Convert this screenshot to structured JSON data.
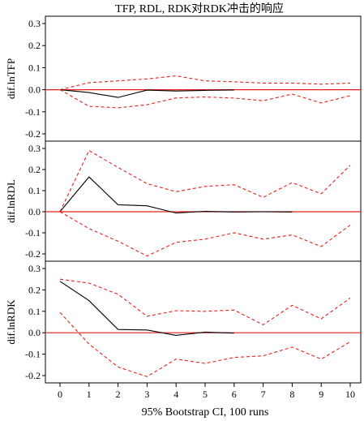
{
  "chart_data": {
    "type": "line",
    "title": "TFP, RDL, RDK对RDK冲击的响应",
    "xlabel": "95% Bootstrap CI, 100 runs",
    "x": [
      0,
      1,
      2,
      3,
      4,
      5,
      6,
      7,
      8,
      9,
      10
    ],
    "xlim": [
      0,
      10
    ],
    "grid": false,
    "panels": [
      {
        "ylabel": "dif.lnTFP",
        "ylim": [
          -0.2,
          0.3
        ],
        "yticks": [
          "0.3",
          "0.2",
          "0.1",
          "0.0",
          "-0.1",
          "-0.2"
        ],
        "series": [
          {
            "role": "response",
            "x": [
              0,
              1,
              2,
              3,
              4,
              5,
              6
            ],
            "values": [
              0.0,
              -0.013,
              -0.035,
              -0.002,
              -0.006,
              -0.003,
              -0.001
            ]
          },
          {
            "role": "upper",
            "values": [
              0.0,
              0.032,
              0.04,
              0.049,
              0.063,
              0.04,
              0.036,
              0.03,
              0.03,
              0.025,
              0.03
            ]
          },
          {
            "role": "lower",
            "values": [
              0.0,
              -0.075,
              -0.082,
              -0.068,
              -0.037,
              -0.033,
              -0.038,
              -0.05,
              -0.02,
              -0.06,
              -0.027
            ]
          }
        ]
      },
      {
        "ylabel": "dif.lnRDL",
        "ylim": [
          -0.2,
          0.3
        ],
        "yticks": [
          "0.3",
          "0.2",
          "0.1",
          "0.0",
          "-0.1",
          "-0.2"
        ],
        "series": [
          {
            "role": "response",
            "x": [
              0,
              1,
              2,
              3,
              4,
              5,
              6,
              7,
              8
            ],
            "values": [
              0.0,
              0.165,
              0.033,
              0.028,
              -0.006,
              0.002,
              -0.001,
              0.0,
              -0.001
            ]
          },
          {
            "role": "upper",
            "values": [
              0.0,
              0.29,
              0.21,
              0.133,
              0.095,
              0.12,
              0.128,
              0.068,
              0.138,
              0.085,
              0.22
            ]
          },
          {
            "role": "lower",
            "values": [
              0.0,
              -0.08,
              -0.14,
              -0.21,
              -0.145,
              -0.13,
              -0.1,
              -0.13,
              -0.11,
              -0.165,
              -0.063
            ]
          }
        ]
      },
      {
        "ylabel": "dif.lnRDK",
        "ylim": [
          -0.2,
          0.3
        ],
        "yticks": [
          "0.3",
          "0.2",
          "0.1",
          "0.0",
          "-0.1",
          "-0.2"
        ],
        "series": [
          {
            "role": "response",
            "x": [
              0,
              1,
              2,
              3,
              4,
              5,
              6
            ],
            "values": [
              0.24,
              0.15,
              0.015,
              0.013,
              -0.012,
              0.003,
              -0.002
            ]
          },
          {
            "role": "upper",
            "values": [
              0.25,
              0.232,
              0.18,
              0.077,
              0.103,
              0.1,
              0.106,
              0.037,
              0.128,
              0.065,
              0.162
            ]
          },
          {
            "role": "lower",
            "values": [
              0.095,
              -0.053,
              -0.16,
              -0.205,
              -0.123,
              -0.143,
              -0.115,
              -0.108,
              -0.067,
              -0.123,
              -0.042
            ]
          }
        ]
      }
    ]
  }
}
